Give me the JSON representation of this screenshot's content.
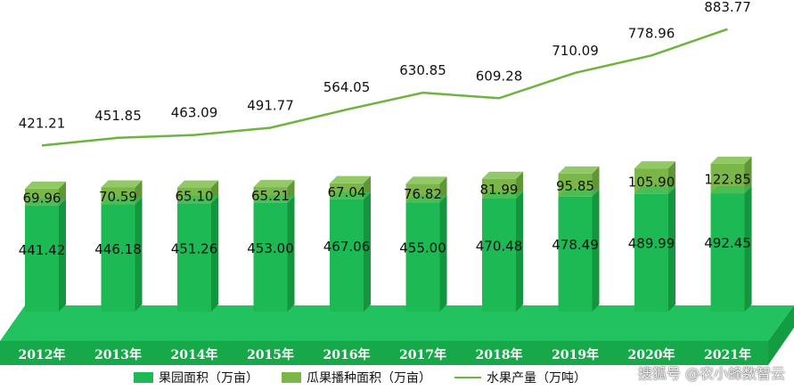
{
  "chart_data": {
    "type": "bar",
    "categories": [
      "2012年",
      "2013年",
      "2014年",
      "2015年",
      "2016年",
      "2017年",
      "2018年",
      "2019年",
      "2020年",
      "2021年"
    ],
    "series": [
      {
        "name": "果园面积（万亩）",
        "values": [
          441.42,
          446.18,
          451.26,
          453.0,
          467.06,
          455.0,
          470.48,
          478.49,
          489.99,
          492.45
        ],
        "color": "#1db954"
      },
      {
        "name": "瓜果播种面积（万亩）",
        "values": [
          69.96,
          70.59,
          65.1,
          65.21,
          67.04,
          76.82,
          81.99,
          95.85,
          105.9,
          122.85
        ],
        "color": "#7ab648"
      },
      {
        "name": "水果产量（万吨）",
        "type": "line",
        "values": [
          421.21,
          451.85,
          463.09,
          491.77,
          564.05,
          630.85,
          609.28,
          710.09,
          778.96,
          883.77
        ],
        "color": "#6fb33f"
      }
    ],
    "value_labels": {
      "orchard": [
        "441.42",
        "446.18",
        "451.26",
        "453.00",
        "467.06",
        "455.00",
        "470.48",
        "478.49",
        "489.99",
        "492.45"
      ],
      "melon": [
        "69.96",
        "70.59",
        "65.10",
        "65.21",
        "67.04",
        "76.82",
        "81.99",
        "95.85",
        "105.90",
        "122.85"
      ],
      "fruit": [
        "421.21",
        "451.85",
        "463.09",
        "491.77",
        "564.05",
        "630.85",
        "609.28",
        "710.09",
        "778.96",
        "883.77"
      ]
    },
    "legend_position": "bottom",
    "grid": false
  },
  "legend": {
    "orchard": "果园面积（万亩）",
    "melon": "瓜果播种面积（万亩）",
    "fruit": "水果产量（万吨）"
  },
  "watermark": "搜狐号 @农小蜂数智云",
  "colors": {
    "orchard": "#1db954",
    "melon": "#7ab648",
    "line": "#6fb33f",
    "floor": "#1db954"
  }
}
